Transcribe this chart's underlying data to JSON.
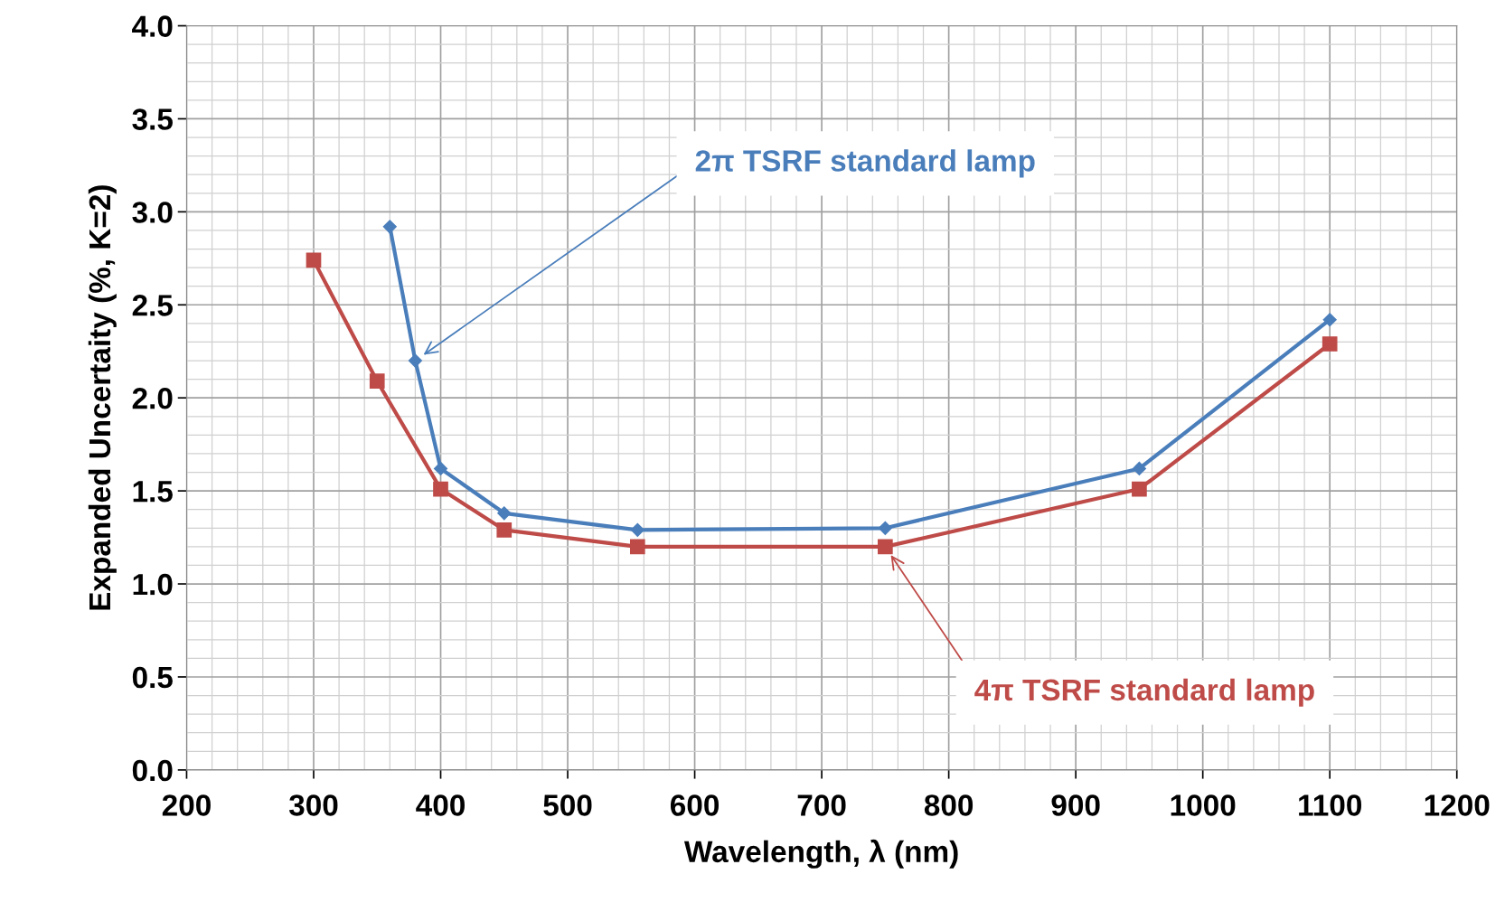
{
  "chart_data": {
    "type": "line",
    "xlabel": "Wavelength, λ (nm)",
    "ylabel": "Expanded Uncertaity (%, K=2)",
    "series": [
      {
        "name": "2π TSRF standard lamp",
        "color": "#4a7ebb",
        "marker": "diamond",
        "x": [
          360,
          380,
          400,
          450,
          555,
          750,
          950,
          1100
        ],
        "values": [
          2.92,
          2.2,
          1.62,
          1.38,
          1.29,
          1.3,
          1.62,
          2.42
        ]
      },
      {
        "name": "4π TSRF standard lamp",
        "color": "#be4b48",
        "marker": "square",
        "x": [
          300,
          350,
          400,
          450,
          555,
          750,
          950,
          1100
        ],
        "values": [
          2.74,
          2.09,
          1.51,
          1.29,
          1.2,
          1.2,
          1.51,
          2.29
        ]
      }
    ],
    "xlim": [
      200,
      1200
    ],
    "xticks": [
      200,
      300,
      400,
      500,
      600,
      700,
      800,
      900,
      1000,
      1100,
      1200
    ],
    "ylim": [
      0,
      4
    ],
    "yticks": [
      {
        "value": 0,
        "label": "0.0"
      },
      {
        "value": 0.5,
        "label": "0.5"
      },
      {
        "value": 1,
        "label": "1.0"
      },
      {
        "value": 1.5,
        "label": "1.5"
      },
      {
        "value": 2,
        "label": "2.0"
      },
      {
        "value": 2.5,
        "label": "2.5"
      },
      {
        "value": 3,
        "label": "3.0"
      },
      {
        "value": 3.5,
        "label": "3.5"
      },
      {
        "value": 4,
        "label": "4.0"
      }
    ],
    "grid": true,
    "line_style": "solid"
  }
}
